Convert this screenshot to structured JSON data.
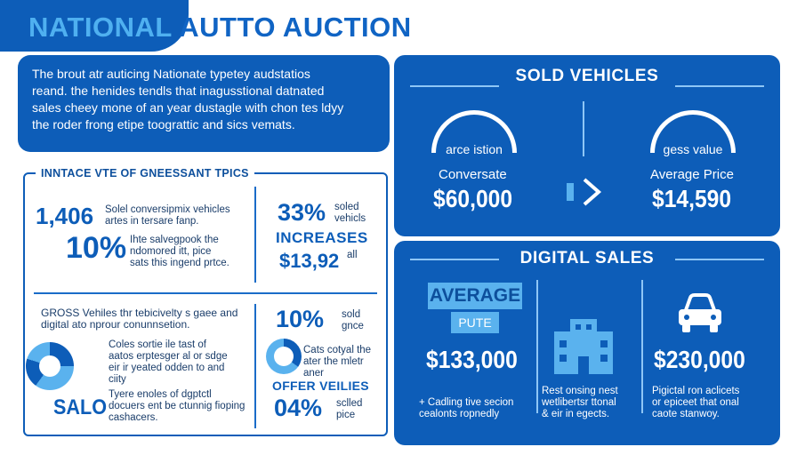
{
  "header": {
    "title_part1": "NATIONAL",
    "title_part2": "AUTTO AUCTION"
  },
  "intro": {
    "text_lines": [
      "The brout atr auticing Nationate typetey audstatios",
      "reand. the henides tendls that inagusstional datnated",
      "sales cheey mone of an year dustagle with chon tes ldyy",
      "the roder frong etipe toograttic and sics vemats."
    ]
  },
  "left_panel": {
    "title": "INNTACE VTE OF GNEESSANT TPICS",
    "stat1": {
      "value": "1,406",
      "desc": [
        "Solel conversipmix vehicles",
        "artes in tersare fanp."
      ]
    },
    "stat2": {
      "value": "10%",
      "desc": [
        "Ihte salvegpook the",
        "ndomored itt, pice",
        "sats this ingend prtce."
      ]
    },
    "stat3": {
      "value": "33%",
      "desc": [
        "soled",
        "vehicls"
      ],
      "label": "INCREASES",
      "price": "$13,92",
      "price_suffix": "all"
    },
    "gross": {
      "title_lines": [
        "GROSS Vehiles thr tebicivelty s gaee and",
        "digital ato nprour conunnsetion."
      ]
    },
    "donut_text": [
      "Coles sortie ile tast of",
      "aatos erptesger al or sdge",
      "eir ir yeated odden to and",
      "ciity"
    ],
    "salo": {
      "label": "SALO",
      "desc": [
        "Tyere enoles of dgptctl",
        "docuers ent be ctunnig fioping",
        "cashacers."
      ]
    },
    "stat4": {
      "value": "10%",
      "desc": [
        "sold",
        "gnce"
      ],
      "text": [
        "Cats cotyal the",
        "ater the mletr",
        "aner"
      ]
    },
    "offer": {
      "label": "OFFER VEILIES",
      "value": "04%",
      "desc": [
        "sclled",
        "pice"
      ]
    }
  },
  "sold_vehicles": {
    "title": "SOLD VEHICLES",
    "left": {
      "gauge_label": "arce istion",
      "label": "Conversate",
      "price": "$60,000"
    },
    "right": {
      "gauge_label": "gess value",
      "label": "Average Price",
      "price": "$14,590"
    }
  },
  "digital_sales": {
    "title": "DIGITAL SALES",
    "col1": {
      "badge": "AVERAGE",
      "sub_badge": "PUTE",
      "price": "$133,000",
      "desc": [
        "+ Cadling tive secion",
        "cealonts ropnedly"
      ]
    },
    "col2": {
      "icon": "building-icon",
      "desc": [
        "Rest onsing nest",
        "wetlibertsr ttonal",
        "& eir in egects."
      ]
    },
    "col3": {
      "icon": "car-icon",
      "price": "$230,000",
      "desc": [
        "Pigictal ron aclicets",
        "or epiceet that onal",
        "caote stanwoy."
      ]
    }
  },
  "colors": {
    "primary": "#0d5db8",
    "accent": "#5ab2ee",
    "text_dark": "#1a3d6a"
  }
}
